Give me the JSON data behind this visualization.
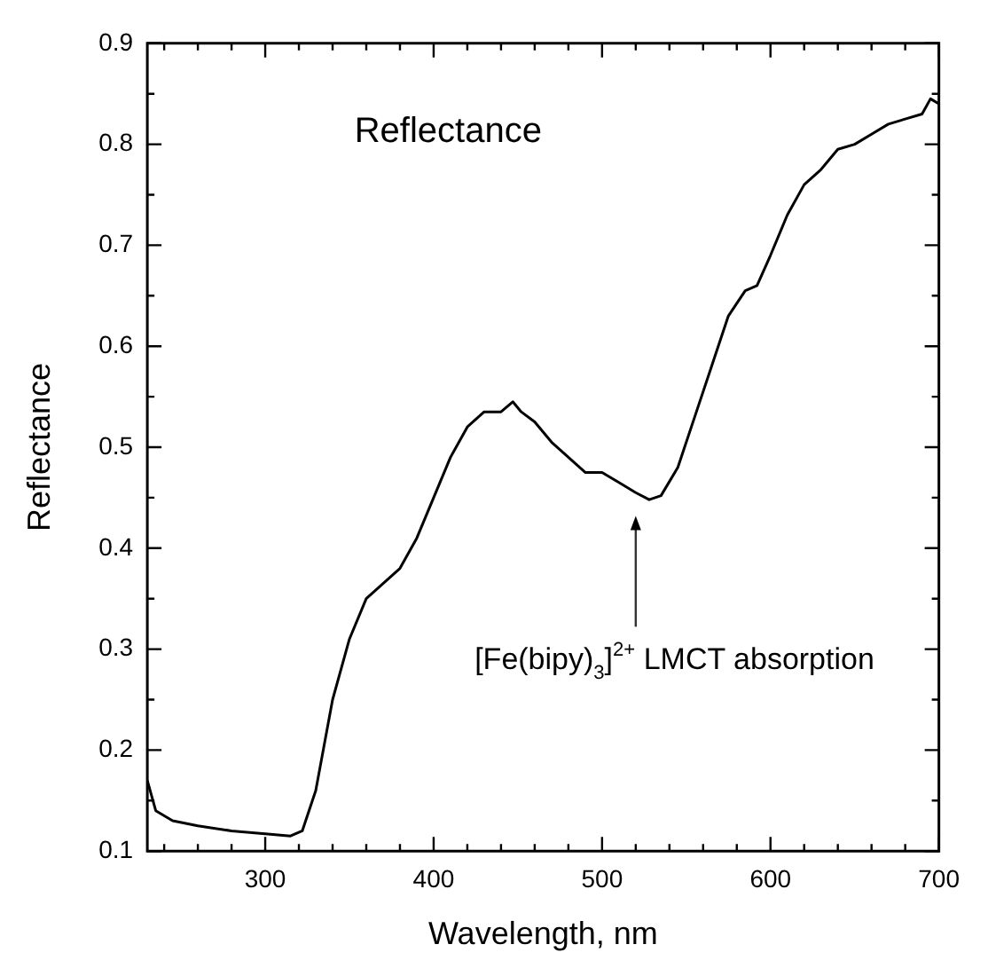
{
  "chart_data": {
    "type": "line",
    "title": "Reflectance",
    "xlabel": "Wavelength, nm",
    "ylabel": "Reflectance",
    "x": [
      230,
      235,
      245,
      260,
      280,
      300,
      315,
      322,
      330,
      340,
      350,
      360,
      370,
      380,
      390,
      400,
      410,
      420,
      430,
      440,
      447,
      452,
      460,
      470,
      480,
      490,
      500,
      510,
      520,
      528,
      535,
      545,
      555,
      565,
      575,
      585,
      592,
      600,
      610,
      620,
      630,
      640,
      650,
      660,
      670,
      680,
      690,
      695,
      700
    ],
    "series": [
      {
        "color": "#000000",
        "values": [
          0.17,
          0.14,
          0.13,
          0.125,
          0.12,
          0.117,
          0.115,
          0.12,
          0.16,
          0.25,
          0.31,
          0.35,
          0.365,
          0.38,
          0.41,
          0.45,
          0.49,
          0.52,
          0.535,
          0.535,
          0.545,
          0.535,
          0.525,
          0.505,
          0.49,
          0.475,
          0.475,
          0.465,
          0.455,
          0.448,
          0.452,
          0.48,
          0.53,
          0.58,
          0.63,
          0.655,
          0.66,
          0.69,
          0.73,
          0.76,
          0.775,
          0.795,
          0.8,
          0.81,
          0.82,
          0.825,
          0.83,
          0.845,
          0.84
        ]
      }
    ],
    "xlim": [
      230,
      700
    ],
    "xticks": [
      {
        "value": 240,
        "label": null
      },
      {
        "value": 260,
        "label": null
      },
      {
        "value": 280,
        "label": null
      },
      300,
      {
        "value": 320,
        "label": null
      },
      {
        "value": 340,
        "label": null
      },
      {
        "value": 360,
        "label": null
      },
      {
        "value": 380,
        "label": null
      },
      400,
      {
        "value": 420,
        "label": null
      },
      {
        "value": 440,
        "label": null
      },
      {
        "value": 460,
        "label": null
      },
      {
        "value": 480,
        "label": null
      },
      500,
      {
        "value": 520,
        "label": null
      },
      {
        "value": 540,
        "label": null
      },
      {
        "value": 560,
        "label": null
      },
      {
        "value": 580,
        "label": null
      },
      600,
      {
        "value": 620,
        "label": null
      },
      {
        "value": 640,
        "label": null
      },
      {
        "value": 660,
        "label": null
      },
      {
        "value": 680,
        "label": null
      },
      700
    ],
    "ylim": [
      0.1,
      0.9
    ],
    "yticks": [
      0.1,
      {
        "value": 0.15,
        "label": null
      },
      0.2,
      {
        "value": 0.25,
        "label": null
      },
      0.3,
      {
        "value": 0.35,
        "label": null
      },
      0.4,
      {
        "value": 0.45,
        "label": null
      },
      0.5,
      {
        "value": 0.55,
        "label": null
      },
      0.6,
      {
        "value": 0.65,
        "label": null
      },
      0.7,
      {
        "value": 0.75,
        "label": null
      },
      0.8,
      {
        "value": 0.85,
        "label": null
      },
      0.9
    ],
    "annotations": [
      "[Fe(bipy)$_{3}$]$^{2+}$ LMCT absorption"
    ],
    "grid": false,
    "legend": false,
    "marker": "none",
    "line_style": "solid"
  }
}
